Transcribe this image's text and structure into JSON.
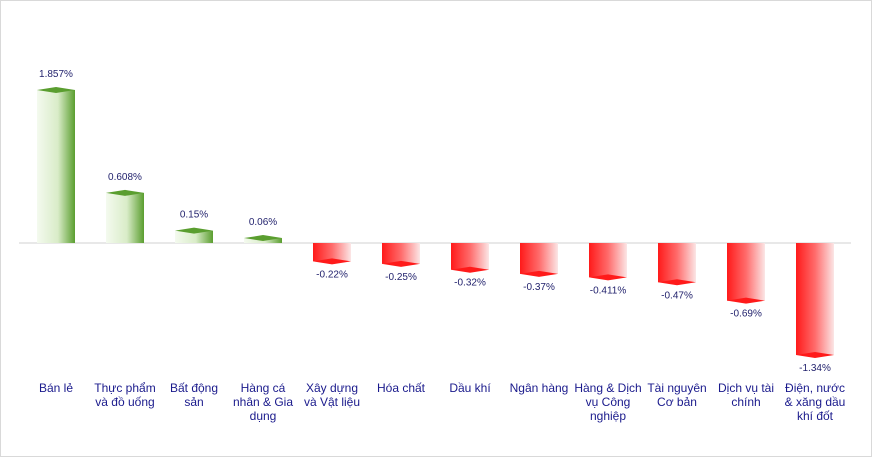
{
  "chart_data": {
    "type": "bar",
    "categories": [
      [
        "Bán lẻ"
      ],
      [
        "Thực phẩm",
        "và đồ uống"
      ],
      [
        "Bất động",
        "sản"
      ],
      [
        "Hàng cá",
        "nhân & Gia",
        "dụng"
      ],
      [
        "Xây dựng",
        "và Vật liệu"
      ],
      [
        "Hóa chất"
      ],
      [
        "Dầu khí"
      ],
      [
        "Ngân hàng"
      ],
      [
        "Hàng & Dịch",
        "vụ Công",
        "nghiệp"
      ],
      [
        "Tài nguyên",
        "Cơ bản"
      ],
      [
        "Dịch vụ tài",
        "chính"
      ],
      [
        "Điện, nước",
        "& xăng dầu",
        "khí đốt"
      ]
    ],
    "values": [
      1.857,
      0.608,
      0.15,
      0.06,
      -0.22,
      -0.25,
      -0.32,
      -0.37,
      -0.411,
      -0.47,
      -0.69,
      -1.34
    ],
    "data_labels": [
      "1.857%",
      "0.608%",
      "0.15%",
      "0.06%",
      "-0.22%",
      "-0.25%",
      "-0.32%",
      "-0.37%",
      "-0.411%",
      "-0.47%",
      "-0.69%",
      "-1.34%"
    ],
    "ylim": [
      -1.34,
      1.857
    ],
    "grid": false,
    "colors": {
      "positive_dark": "#5a9e2f",
      "positive_light": "#f4faef",
      "negative_dark": "#ff1a1a",
      "negative_light": "#fbe6e6",
      "baseline": "#d0d0d0",
      "value_text": "#1f1f6b",
      "category_text": "#1a1a8c"
    }
  }
}
